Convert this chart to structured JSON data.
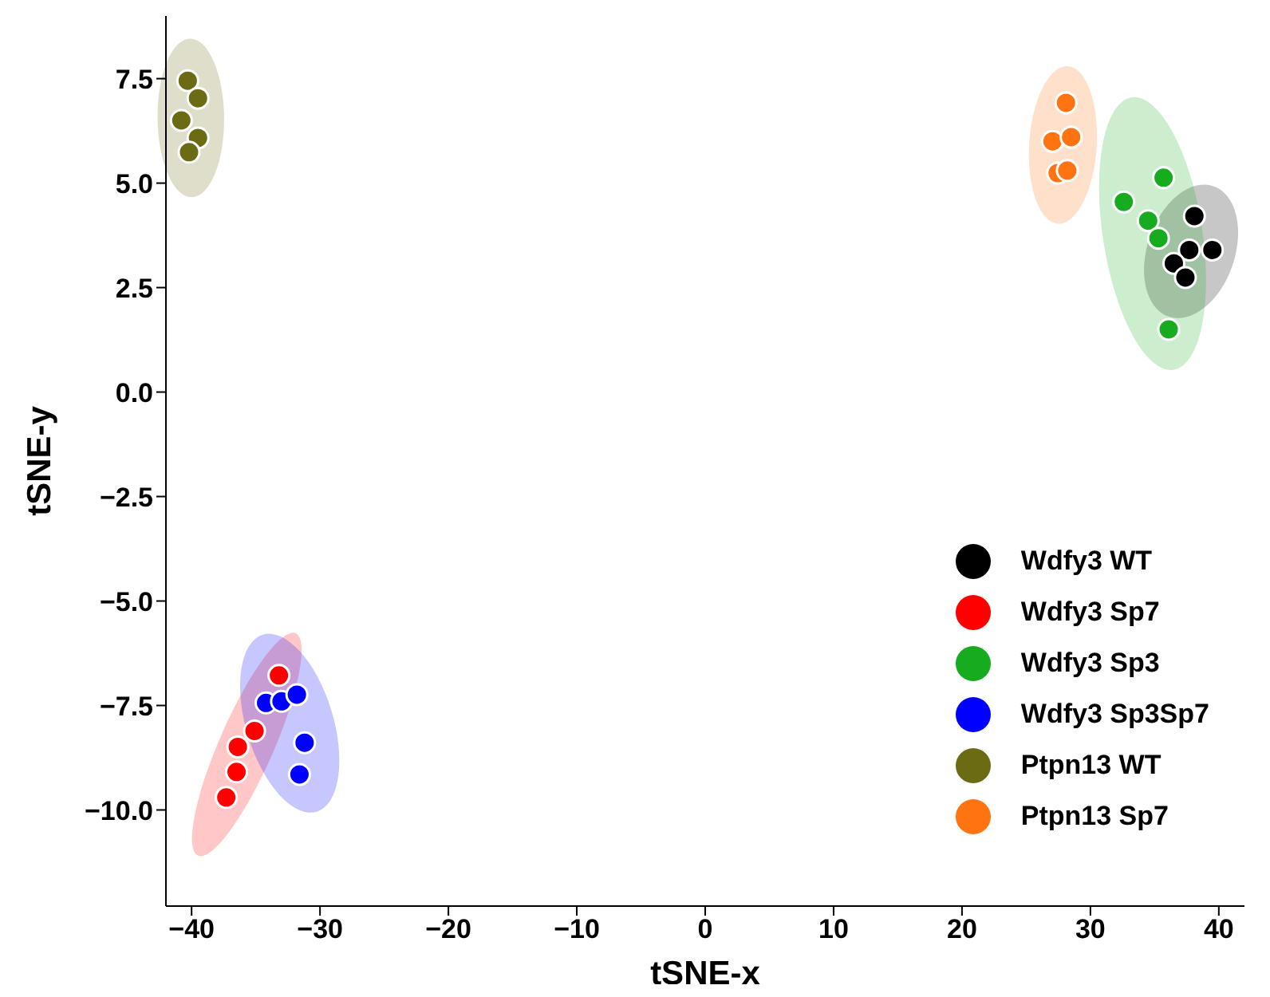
{
  "chart_data": {
    "type": "scatter",
    "xlabel": "tSNE-x",
    "ylabel": "tSNE-y",
    "xlim": [
      -42,
      42
    ],
    "xticks": [
      {
        "value": -40,
        "label": "−40"
      },
      {
        "value": -30,
        "label": "−30"
      },
      {
        "value": -20,
        "label": "−20"
      },
      {
        "value": -10,
        "label": "−10"
      },
      0,
      10,
      20,
      30,
      40
    ],
    "ylim": [
      -12.3,
      9
    ],
    "yticks": [
      {
        "value": -10,
        "label": "−10.0"
      },
      {
        "value": -7.5,
        "label": "−7.5"
      },
      {
        "value": -5,
        "label": "−5.0"
      },
      {
        "value": -2.5,
        "label": "−2.5"
      },
      {
        "value": 0,
        "label": "0.0"
      },
      2.5,
      {
        "value": 5,
        "label": "5.0"
      },
      7.5
    ],
    "grid": false,
    "legend": "bottom right",
    "marker": "circle",
    "series": [
      {
        "name": "Wdfy3 WT",
        "color": "#000000",
        "x": [
          38.1,
          37.7,
          39.5,
          36.5,
          37.4
        ],
        "values": [
          4.21,
          3.4,
          3.4,
          3.08,
          2.74
        ]
      },
      {
        "name": "Wdfy3 Sp7",
        "color": "#ff0000",
        "x": [
          -33.2,
          -35.1,
          -36.4,
          -36.5,
          -37.3
        ],
        "values": [
          -6.78,
          -8.11,
          -8.49,
          -9.09,
          -9.7
        ]
      },
      {
        "name": "Wdfy3 Sp3",
        "color": "#17ab1f",
        "x": [
          35.7,
          32.6,
          34.5,
          35.3,
          36.1
        ],
        "values": [
          5.13,
          4.55,
          4.1,
          3.68,
          1.5
        ]
      },
      {
        "name": "Wdfy3 Sp3Sp7",
        "color": "#0000ff",
        "x": [
          -34.2,
          -33.0,
          -31.8,
          -31.2,
          -31.6
        ],
        "values": [
          -7.44,
          -7.4,
          -7.24,
          -8.39,
          -9.15
        ]
      },
      {
        "name": "Ptpn13 WT",
        "color": "#6b6b13",
        "x": [
          -40.3,
          -39.5,
          -40.8,
          -39.5,
          -40.2
        ],
        "values": [
          7.45,
          7.03,
          6.5,
          6.08,
          5.74
        ]
      },
      {
        "name": "Ptpn13 Sp7",
        "color": "#ff7311",
        "x": [
          28.1,
          27.05,
          28.5,
          27.45,
          28.2
        ],
        "values": [
          6.92,
          6.0,
          6.1,
          5.24,
          5.3
        ]
      }
    ]
  }
}
